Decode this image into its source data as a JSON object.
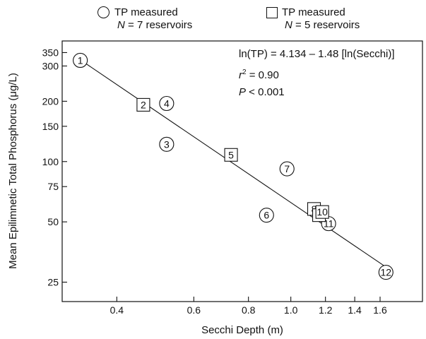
{
  "legend": {
    "circle": {
      "line1": "TP measured",
      "n_label": "N",
      "n_rest": " = 7 reservoirs"
    },
    "square": {
      "line1": "TP measured",
      "n_label": "N",
      "n_rest": " = 5 reservoirs"
    }
  },
  "annotation": {
    "equation": "ln(TP) = 4.134 – 1.48 [ln(Secchi)]",
    "r_symbol": "r",
    "r_exp": "2",
    "r_rest": " = 0.90",
    "p_symbol": "P",
    "p_rest": " < 0.001"
  },
  "chart_data": {
    "type": "scatter",
    "xlabel": "Secchi Depth (m)",
    "ylabel": "Mean Epilimnetic Total Phosphorus (μg/L)",
    "x_scale": "log",
    "y_scale": "log",
    "xlim": [
      0.3,
      2.0
    ],
    "ylim": [
      20,
      400
    ],
    "x_ticks": [
      {
        "value": 0.4,
        "label": "0.4"
      },
      {
        "value": 0.6,
        "label": "0.6"
      },
      {
        "value": 0.8,
        "label": "0.8"
      },
      {
        "value": 1.0,
        "label": "1.0"
      },
      {
        "value": 1.2,
        "label": "1.2"
      },
      {
        "value": 1.4,
        "label": "1.4"
      },
      {
        "value": 1.6,
        "label": "1.6"
      }
    ],
    "y_ticks": [
      {
        "value": 25,
        "label": "25"
      },
      {
        "value": 50,
        "label": "50"
      },
      {
        "value": 75,
        "label": "75"
      },
      {
        "value": 100,
        "label": "100"
      },
      {
        "value": 150,
        "label": "150"
      },
      {
        "value": 200,
        "label": "200"
      },
      {
        "value": 300,
        "label": "300"
      },
      {
        "value": 350,
        "label": "350"
      }
    ],
    "series": [
      {
        "name": "TP measured N = 7 reservoirs",
        "marker": "circle",
        "points": [
          {
            "label": "1",
            "x": 0.33,
            "y": 320
          },
          {
            "label": "3",
            "x": 0.52,
            "y": 122
          },
          {
            "label": "4",
            "x": 0.52,
            "y": 195
          },
          {
            "label": "6",
            "x": 0.88,
            "y": 54
          },
          {
            "label": "7",
            "x": 0.98,
            "y": 92
          },
          {
            "label": "11",
            "x": 1.22,
            "y": 49
          },
          {
            "label": "12",
            "x": 1.65,
            "y": 28
          }
        ]
      },
      {
        "name": "TP measured N = 5 reservoirs",
        "marker": "square",
        "points": [
          {
            "label": "2",
            "x": 0.46,
            "y": 192
          },
          {
            "label": "5",
            "x": 0.73,
            "y": 108
          },
          {
            "label": "8",
            "x": 1.13,
            "y": 58
          },
          {
            "label": "9",
            "x": 1.16,
            "y": 54
          },
          {
            "label": "10",
            "x": 1.18,
            "y": 56
          }
        ]
      }
    ],
    "fit_line": {
      "equation": "ln(TP) = 4.134 – 1.48 [ln(Secchi)]",
      "intercept": 4.134,
      "slope": -1.48,
      "x_range": [
        0.33,
        1.65
      ]
    }
  }
}
